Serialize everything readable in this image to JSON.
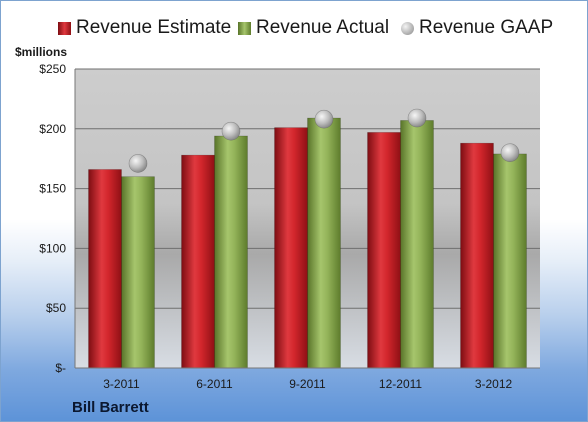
{
  "company": "Bill Barrett",
  "chart_data": {
    "type": "bar",
    "unit_label": "$millions",
    "categories": [
      "3-2011",
      "6-2011",
      "9-2011",
      "12-2011",
      "3-2012"
    ],
    "series": [
      {
        "name": "Revenue Estimate",
        "type": "bar",
        "color": "#c8202a",
        "values": [
          166,
          178,
          201,
          197,
          188
        ]
      },
      {
        "name": "Revenue Actual",
        "type": "bar",
        "color": "#8aab4f",
        "values": [
          160,
          194,
          209,
          207,
          179
        ]
      },
      {
        "name": "Revenue GAAP",
        "type": "marker",
        "color": "#b4b4b4",
        "values": [
          171,
          198,
          208,
          209,
          180
        ]
      }
    ],
    "yticks": [
      "$-",
      "$50",
      "$100",
      "$150",
      "$200",
      "$250"
    ],
    "ytick_values": [
      0,
      50,
      100,
      150,
      200,
      250
    ],
    "ylim": [
      0,
      250
    ],
    "grid": true,
    "legend_position": "top"
  }
}
